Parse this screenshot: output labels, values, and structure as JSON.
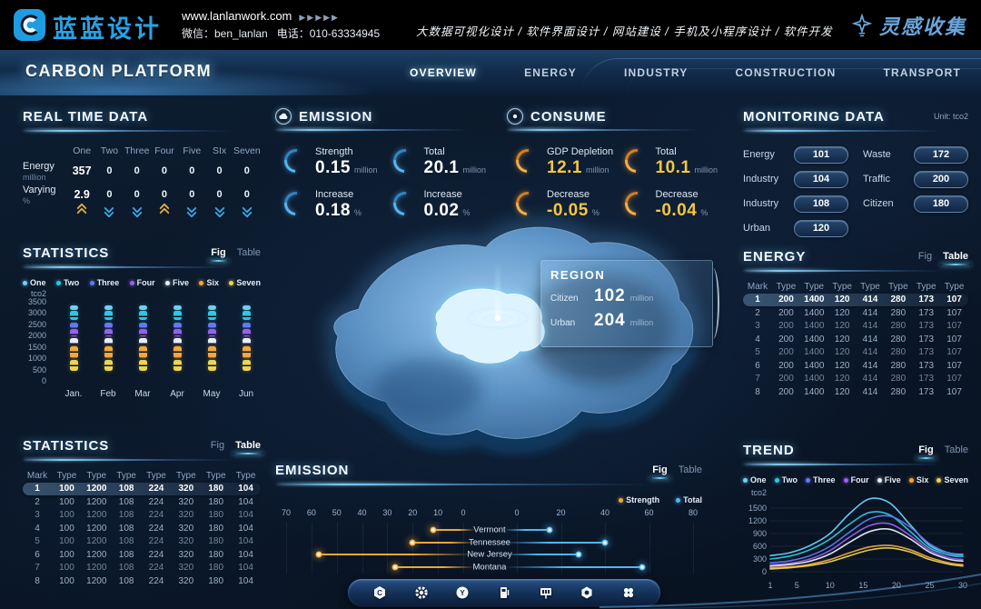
{
  "topbar": {
    "brand_name": "蓝蓝设计",
    "site": "www.lanlanwork.com",
    "arrows": "▶▶▶▶▶",
    "wechat": "微信：ben_lanlan",
    "phone": "电话：010-63334945",
    "services": "大数据可视化设计 / 软件界面设计 / 网站建设 / 手机及小程序设计 / 软件开发",
    "collect": "灵感收集"
  },
  "nav": {
    "title": "CARBON PLATFORM",
    "items": [
      {
        "label": "OVERVIEW",
        "active": true
      },
      {
        "label": "ENERGY",
        "active": false
      },
      {
        "label": "INDUSTRY",
        "active": false
      },
      {
        "label": "CONSTRUCTION",
        "active": false
      },
      {
        "label": "TRANSPORT",
        "active": false
      }
    ]
  },
  "real_time": {
    "title": "REAL TIME DATA",
    "columns": [
      "One",
      "Two",
      "Three",
      "Four",
      "Five",
      "SIx",
      "Seven"
    ],
    "rows": [
      {
        "label": "Energy",
        "unit": "million",
        "values": [
          "357",
          "0",
          "0",
          "0",
          "0",
          "0",
          "0"
        ]
      },
      {
        "label": "Varying",
        "unit": "%",
        "values": [
          "2.9",
          "0",
          "0",
          "0",
          "0",
          "0",
          "0"
        ]
      }
    ],
    "trends": [
      "up",
      "down",
      "down",
      "up",
      "down",
      "down",
      "down"
    ],
    "trend_colors": {
      "up": "#e8b33c",
      "down": "#3fa9e8"
    }
  },
  "statistics_fig": {
    "title": "STATISTICS",
    "toggle": {
      "fig_label": "Fig",
      "table_label": "Table",
      "active": "fig"
    }
  },
  "statistics_table": {
    "title": "STATISTICS",
    "toggle": {
      "fig_label": "Fig",
      "table_label": "Table",
      "active": "table"
    },
    "headers": [
      "Mark",
      "Type",
      "Type",
      "Type",
      "Type",
      "Type",
      "Type",
      "Type"
    ],
    "rows": [
      [
        "1",
        "100",
        "1200",
        "108",
        "224",
        "320",
        "180",
        "104"
      ],
      [
        "2",
        "100",
        "1200",
        "108",
        "224",
        "320",
        "180",
        "104"
      ],
      [
        "3",
        "100",
        "1200",
        "108",
        "224",
        "320",
        "180",
        "104"
      ],
      [
        "4",
        "100",
        "1200",
        "108",
        "224",
        "320",
        "180",
        "104"
      ],
      [
        "5",
        "100",
        "1200",
        "108",
        "224",
        "320",
        "180",
        "104"
      ],
      [
        "6",
        "100",
        "1200",
        "108",
        "224",
        "320",
        "180",
        "104"
      ],
      [
        "7",
        "100",
        "1200",
        "108",
        "224",
        "320",
        "180",
        "104"
      ],
      [
        "8",
        "100",
        "1200",
        "108",
        "224",
        "320",
        "180",
        "104"
      ]
    ]
  },
  "emission_stats": {
    "title": "EMISSION",
    "stats": [
      {
        "label": "Strength",
        "value": "0.15",
        "unit": "million"
      },
      {
        "label": "Total",
        "value": "20.1",
        "unit": "million"
      },
      {
        "label": "Increase",
        "value": "0.18",
        "unit": "%"
      },
      {
        "label": "Increase",
        "value": "0.02",
        "unit": "%"
      }
    ]
  },
  "consume_stats": {
    "title": "CONSUME",
    "stats": [
      {
        "label": "GDP Depletion",
        "value": "12.1",
        "unit": "million"
      },
      {
        "label": "Total",
        "value": "10.1",
        "unit": "million"
      },
      {
        "label": "Decrease",
        "value": "-0.05",
        "unit": "%"
      },
      {
        "label": "Decrease",
        "value": "-0.04",
        "unit": "%"
      }
    ]
  },
  "region_tooltip": {
    "title": "REGION",
    "rows": [
      {
        "label": "Citizen",
        "value": "102",
        "unit": "million"
      },
      {
        "label": "Urban",
        "value": "204",
        "unit": "million"
      }
    ]
  },
  "monitoring": {
    "title": "MONITORING DATA",
    "unit": "Unit: tco2",
    "left": [
      {
        "label": "Energy",
        "value": "101"
      },
      {
        "label": "Industry",
        "value": "104"
      },
      {
        "label": "Industry",
        "value": "108"
      },
      {
        "label": "Urban",
        "value": "120"
      }
    ],
    "right": [
      {
        "label": "Waste",
        "value": "172"
      },
      {
        "label": "Traffic",
        "value": "200"
      },
      {
        "label": "Citizen",
        "value": "180"
      }
    ]
  },
  "energy_table": {
    "title": "ENERGY",
    "toggle": {
      "fig_label": "Fig",
      "table_label": "Table",
      "active": "table"
    },
    "headers": [
      "Mark",
      "Type",
      "Type",
      "Type",
      "Type",
      "Type",
      "Type",
      "Type"
    ],
    "rows": [
      [
        "1",
        "200",
        "1400",
        "120",
        "414",
        "280",
        "173",
        "107"
      ],
      [
        "2",
        "200",
        "1400",
        "120",
        "414",
        "280",
        "173",
        "107"
      ],
      [
        "3",
        "200",
        "1400",
        "120",
        "414",
        "280",
        "173",
        "107"
      ],
      [
        "4",
        "200",
        "1400",
        "120",
        "414",
        "280",
        "173",
        "107"
      ],
      [
        "5",
        "200",
        "1400",
        "120",
        "414",
        "280",
        "173",
        "107"
      ],
      [
        "6",
        "200",
        "1400",
        "120",
        "414",
        "280",
        "173",
        "107"
      ],
      [
        "7",
        "200",
        "1400",
        "120",
        "414",
        "280",
        "173",
        "107"
      ],
      [
        "8",
        "200",
        "1400",
        "120",
        "414",
        "280",
        "173",
        "107"
      ]
    ]
  },
  "emission_chart_panel": {
    "title": "EMISSION",
    "toggle": {
      "fig_label": "Fig",
      "table_label": "Table",
      "active": "fig"
    }
  },
  "trend_panel": {
    "title": "TREND",
    "toggle": {
      "fig_label": "Fig",
      "table_label": "Table",
      "active": "fig"
    }
  },
  "chart_data": [
    {
      "id": "statistics_segments",
      "type": "scatter",
      "title": "STATISTICS",
      "ylabel": "tco2",
      "ylim": [
        0,
        3500
      ],
      "yticks": [
        3500,
        3000,
        2500,
        2000,
        1500,
        1000,
        500,
        0
      ],
      "categories": [
        "Jan.",
        "Feb",
        "Mar",
        "Apr",
        "May",
        "Jun"
      ],
      "series": [
        {
          "name": "One",
          "color": "#6fd0f7",
          "range": [
            3100,
            3300
          ]
        },
        {
          "name": "Two",
          "color": "#2ec8de",
          "range": [
            2650,
            3050
          ]
        },
        {
          "name": "Three",
          "color": "#5f7bf2",
          "range": [
            2300,
            2550
          ]
        },
        {
          "name": "Four",
          "color": "#9a5ff0",
          "range": [
            1950,
            2250
          ]
        },
        {
          "name": "Five",
          "color": "#e9edf4",
          "range": [
            1550,
            1850
          ]
        },
        {
          "name": "Six",
          "color": "#f2a73c",
          "range": [
            950,
            1500
          ]
        },
        {
          "name": "Seven",
          "color": "#ecd454",
          "range": [
            400,
            900
          ]
        }
      ],
      "note": "same segment ranges repeat for each month"
    },
    {
      "id": "emission_lollipop",
      "type": "bar",
      "orientation": "horizontal-diverging",
      "categories": [
        "Vermont",
        "Tennessee",
        "New Jersey",
        "Montana"
      ],
      "series": [
        {
          "name": "Strength",
          "color": "#f0a832",
          "values": [
            12,
            20,
            57,
            27
          ]
        },
        {
          "name": "Total",
          "color": "#4db8f0",
          "values": [
            15,
            40,
            28,
            57
          ]
        }
      ],
      "left_axis_ticks": [
        70,
        60,
        50,
        40,
        30,
        20,
        10,
        0
      ],
      "right_axis_ticks": [
        0,
        20,
        40,
        60,
        80
      ]
    },
    {
      "id": "trend_lines",
      "type": "line",
      "title": "TREND",
      "ylabel": "tco2",
      "ylim": [
        0,
        1800
      ],
      "yticks": [
        1500,
        1200,
        900,
        600,
        300,
        0
      ],
      "xticks": [
        1,
        5,
        10,
        15,
        20,
        25,
        30
      ],
      "x": [
        1,
        4,
        7,
        10,
        13,
        16,
        19,
        22,
        25,
        28,
        30
      ],
      "series": [
        {
          "name": "One",
          "color": "#6fd0f7",
          "values": [
            380,
            450,
            620,
            900,
            1380,
            1720,
            1620,
            1120,
            620,
            440,
            410
          ]
        },
        {
          "name": "Two",
          "color": "#2ec8de",
          "values": [
            300,
            370,
            520,
            770,
            1130,
            1400,
            1340,
            960,
            560,
            390,
            360
          ]
        },
        {
          "name": "Three",
          "color": "#5f7bf2",
          "values": [
            210,
            260,
            380,
            600,
            940,
            1250,
            1310,
            1060,
            660,
            430,
            390
          ]
        },
        {
          "name": "Four",
          "color": "#9a5ff0",
          "values": [
            160,
            200,
            300,
            500,
            820,
            1090,
            1130,
            860,
            510,
            330,
            290
          ]
        },
        {
          "name": "Five",
          "color": "#e9edf4",
          "values": [
            130,
            170,
            250,
            420,
            700,
            950,
            1000,
            780,
            460,
            290,
            250
          ]
        },
        {
          "name": "Six",
          "color": "#f2a73c",
          "values": [
            90,
            115,
            175,
            285,
            450,
            585,
            620,
            520,
            335,
            205,
            165
          ]
        },
        {
          "name": "Seven",
          "color": "#ecd454",
          "values": [
            65,
            95,
            145,
            235,
            380,
            515,
            560,
            470,
            290,
            175,
            135
          ]
        }
      ]
    }
  ],
  "footer": {
    "icons": [
      "carbon-icon",
      "gear-icon",
      "energy-icon",
      "charging-icon",
      "billboard-icon",
      "nut-icon",
      "apps-icon"
    ]
  }
}
